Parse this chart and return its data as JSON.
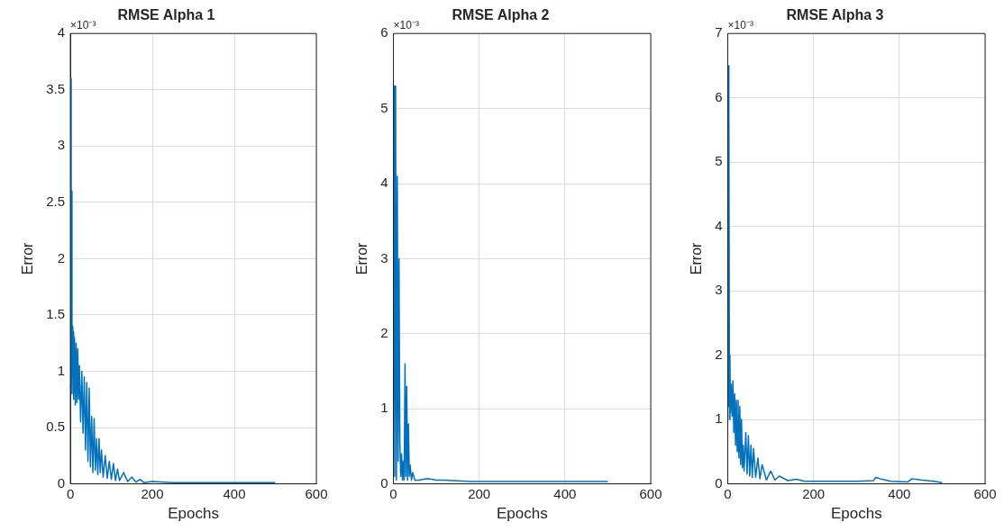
{
  "chart_data": [
    {
      "type": "line",
      "title": "RMSE Alpha 1",
      "xlabel": "Epochs",
      "ylabel": "Error",
      "annotations": [
        "×10⁻³"
      ],
      "xlim": [
        0,
        600
      ],
      "xticks": [
        0,
        200,
        400,
        600
      ],
      "ylim": [
        0,
        4
      ],
      "yticks": [
        0,
        0.5,
        1,
        1.5,
        2,
        2.5,
        3,
        3.5,
        4
      ],
      "grid": true,
      "legend": false,
      "marker": "none",
      "line_style": "solid",
      "series": [
        {
          "color": "#0072bd",
          "x": [
            1,
            2,
            3,
            4,
            5,
            6,
            7,
            8,
            10,
            12,
            14,
            16,
            18,
            20,
            22,
            25,
            28,
            31,
            34,
            37,
            40,
            43,
            46,
            49,
            52,
            55,
            58,
            61,
            64,
            67,
            70,
            73,
            76,
            80,
            85,
            90,
            95,
            100,
            105,
            110,
            115,
            120,
            130,
            140,
            150,
            160,
            170,
            180,
            200,
            250,
            300,
            400,
            500
          ],
          "values": [
            3.6,
            0.9,
            2.6,
            0.8,
            1.4,
            1.0,
            1.35,
            0.75,
            1.3,
            0.7,
            1.25,
            0.72,
            1.2,
            0.75,
            1.05,
            0.55,
            1.0,
            0.45,
            0.95,
            0.3,
            0.9,
            0.2,
            0.85,
            0.15,
            0.6,
            0.1,
            0.58,
            0.12,
            0.4,
            0.08,
            0.4,
            0.1,
            0.3,
            0.06,
            0.25,
            0.05,
            0.2,
            0.04,
            0.18,
            0.03,
            0.13,
            0.03,
            0.1,
            0.02,
            0.06,
            0.015,
            0.04,
            0.01,
            0.02,
            0.01,
            0.01,
            0.01,
            0.01
          ]
        }
      ]
    },
    {
      "type": "line",
      "title": "RMSE Alpha 2",
      "xlabel": "Epochs",
      "ylabel": "Error",
      "annotations": [
        "×10⁻³"
      ],
      "xlim": [
        0,
        600
      ],
      "xticks": [
        0,
        200,
        400,
        600
      ],
      "ylim": [
        0,
        6
      ],
      "yticks": [
        0,
        1,
        2,
        3,
        4,
        5,
        6
      ],
      "grid": true,
      "legend": false,
      "marker": "none",
      "line_style": "solid",
      "series": [
        {
          "color": "#0072bd",
          "x": [
            1,
            3,
            5,
            7,
            9,
            11,
            13,
            15,
            17,
            19,
            21,
            23,
            25,
            27,
            29,
            31,
            33,
            35,
            37,
            39,
            42,
            45,
            50,
            60,
            70,
            80,
            100,
            120,
            150,
            180,
            250,
            350,
            450,
            500
          ],
          "values": [
            5.3,
            0.1,
            5.3,
            0.05,
            4.1,
            0.3,
            3.0,
            0.55,
            0.1,
            0.4,
            0.05,
            0.3,
            0.05,
            1.6,
            0.1,
            1.3,
            0.05,
            0.8,
            0.1,
            0.25,
            0.05,
            0.15,
            0.05,
            0.05,
            0.06,
            0.07,
            0.05,
            0.05,
            0.04,
            0.03,
            0.03,
            0.03,
            0.03,
            0.03
          ]
        }
      ]
    },
    {
      "type": "line",
      "title": "RMSE Alpha 3",
      "xlabel": "Epochs",
      "ylabel": "Error",
      "annotations": [
        "×10⁻³"
      ],
      "xlim": [
        0,
        600
      ],
      "xticks": [
        0,
        200,
        400,
        600
      ],
      "ylim": [
        0,
        7
      ],
      "yticks": [
        0,
        1,
        2,
        3,
        4,
        5,
        6,
        7
      ],
      "grid": true,
      "legend": false,
      "marker": "none",
      "line_style": "solid",
      "series": [
        {
          "color": "#0072bd",
          "x": [
            1,
            2,
            3,
            4,
            5,
            6,
            8,
            10,
            12,
            14,
            16,
            18,
            20,
            22,
            24,
            26,
            28,
            30,
            32,
            34,
            36,
            38,
            42,
            45,
            48,
            51,
            54,
            57,
            60,
            65,
            70,
            75,
            80,
            90,
            100,
            110,
            120,
            140,
            160,
            180,
            200,
            250,
            300,
            340,
            345,
            360,
            380,
            420,
            430,
            450,
            480,
            500
          ],
          "values": [
            6.5,
            1.2,
            5.8,
            1.0,
            2.0,
            1.1,
            1.55,
            1.05,
            1.6,
            0.8,
            1.4,
            0.6,
            1.3,
            0.5,
            1.3,
            0.4,
            1.2,
            0.3,
            1.0,
            0.25,
            0.6,
            0.2,
            0.8,
            0.15,
            0.75,
            0.12,
            0.6,
            0.1,
            0.55,
            0.1,
            0.4,
            0.08,
            0.3,
            0.06,
            0.2,
            0.06,
            0.12,
            0.05,
            0.07,
            0.04,
            0.04,
            0.04,
            0.04,
            0.05,
            0.1,
            0.07,
            0.04,
            0.03,
            0.08,
            0.06,
            0.04,
            0.02
          ]
        }
      ]
    }
  ]
}
